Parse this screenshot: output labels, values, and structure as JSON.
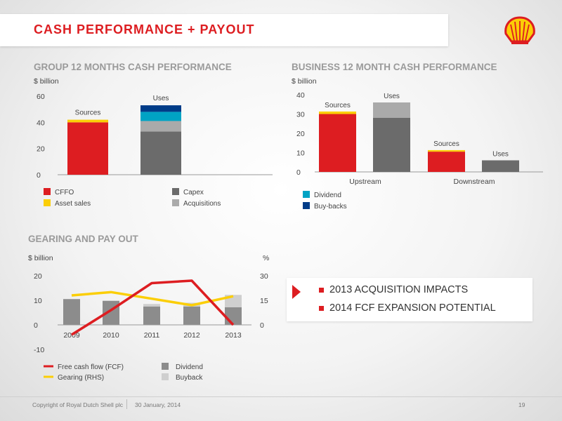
{
  "page": {
    "title": "CASH PERFORMANCE + PAYOUT",
    "footer": {
      "copyright": "Copyright of Royal Dutch Shell plc",
      "date": "30 January, 2014",
      "page_number": "19"
    }
  },
  "colors": {
    "red": "#dd1d21",
    "yellow": "#fbce07",
    "dark_grey": "#6b6b6b",
    "light_grey": "#aaaaaa",
    "teal": "#00a3c4",
    "navy": "#003c88"
  },
  "callout": {
    "items": [
      "2013 ACQUISITION IMPACTS",
      "2014 FCF EXPANSION POTENTIAL"
    ]
  },
  "chart_data": [
    {
      "id": "group",
      "type": "bar",
      "title": "GROUP 12 MONTHS CASH PERFORMANCE",
      "ylabel": "$ billion",
      "ylim": [
        0,
        60
      ],
      "yticks": [
        0,
        20,
        40,
        60
      ],
      "categories": [
        "Sources",
        "Uses"
      ],
      "series": [
        {
          "name": "CFFO",
          "color": "#dd1d21",
          "values": [
            40,
            0
          ]
        },
        {
          "name": "Asset sales",
          "color": "#fbce07",
          "values": [
            2,
            0
          ]
        },
        {
          "name": "Capex",
          "color": "#6b6b6b",
          "values": [
            0,
            33
          ]
        },
        {
          "name": "Acquisitions",
          "color": "#aaaaaa",
          "values": [
            0,
            8
          ]
        },
        {
          "name": "Dividend",
          "color": "#00a3c4",
          "values": [
            0,
            7
          ]
        },
        {
          "name": "Buy-backs",
          "color": "#003c88",
          "values": [
            0,
            5
          ]
        }
      ],
      "legend": [
        {
          "name": "CFFO",
          "color": "#dd1d21"
        },
        {
          "name": "Asset sales",
          "color": "#fbce07"
        },
        {
          "name": "Capex",
          "color": "#6b6b6b"
        },
        {
          "name": "Acquisitions",
          "color": "#aaaaaa"
        },
        {
          "name": "Dividend",
          "color": "#00a3c4"
        },
        {
          "name": "Buy-backs",
          "color": "#003c88"
        }
      ]
    },
    {
      "id": "business",
      "type": "bar",
      "title": "BUSINESS 12 MONTH CASH PERFORMANCE",
      "ylabel": "$ billion",
      "ylim": [
        0,
        40
      ],
      "yticks": [
        0,
        10,
        20,
        30,
        40
      ],
      "groups": [
        "Upstream",
        "Downstream"
      ],
      "bars": [
        {
          "group": "Upstream",
          "label": "Sources",
          "segments": [
            {
              "name": "CFFO",
              "value": 30,
              "color": "#dd1d21"
            },
            {
              "name": "Asset sales",
              "value": 1.3,
              "color": "#fbce07"
            }
          ]
        },
        {
          "group": "Upstream",
          "label": "Uses",
          "segments": [
            {
              "name": "Capex",
              "value": 28,
              "color": "#6b6b6b"
            },
            {
              "name": "Acquisitions",
              "value": 8,
              "color": "#aaaaaa"
            }
          ]
        },
        {
          "group": "Downstream",
          "label": "Sources",
          "segments": [
            {
              "name": "CFFO",
              "value": 10.5,
              "color": "#dd1d21"
            },
            {
              "name": "Asset sales",
              "value": 0.8,
              "color": "#fbce07"
            }
          ]
        },
        {
          "group": "Downstream",
          "label": "Uses",
          "segments": [
            {
              "name": "Capex",
              "value": 6,
              "color": "#6b6b6b"
            }
          ]
        }
      ]
    },
    {
      "id": "gearing",
      "type": "bar+line",
      "title": "GEARING AND PAY OUT",
      "ylabel": "$ billion",
      "y2label": "%",
      "ylim": [
        -10,
        20
      ],
      "yticks": [
        -10,
        0,
        10,
        20
      ],
      "y2lim": [
        0,
        30
      ],
      "y2ticks": [
        0,
        15,
        30
      ],
      "categories": [
        "2009",
        "2010",
        "2011",
        "2012",
        "2013"
      ],
      "series": [
        {
          "name": "Dividend",
          "type": "bar",
          "color": "#8c8c8c",
          "values": [
            10.5,
            9.8,
            7.5,
            7.5,
            7.2
          ]
        },
        {
          "name": "Buyback",
          "type": "bar",
          "color": "#cfcfcf",
          "values": [
            0,
            0,
            1.0,
            1.5,
            5.0
          ]
        },
        {
          "name": "Free cash flow (FCF)",
          "type": "line",
          "axis": "left",
          "color": "#dd1d21",
          "values": [
            -4,
            6,
            17,
            18,
            0
          ]
        },
        {
          "name": "Gearing (RHS)",
          "type": "line",
          "axis": "right",
          "color": "#fbce07",
          "values": [
            18,
            20,
            16,
            12,
            17.5
          ]
        }
      ]
    }
  ]
}
